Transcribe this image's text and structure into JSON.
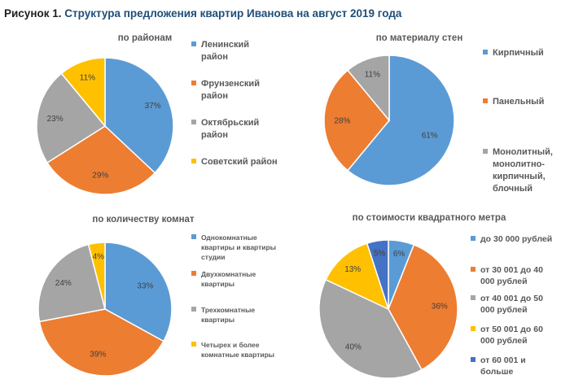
{
  "figure": {
    "title_lead": "Рисунок 1.",
    "title_rest": "Структура предложения квартир Иванова на август 2019 года"
  },
  "chart_data": [
    {
      "type": "pie",
      "title": "по районам",
      "categories": [
        "Ленинский район",
        "Фрунзенский район",
        "Октябрьский район",
        "Советский район"
      ],
      "values": [
        37,
        29,
        23,
        11
      ],
      "labels": [
        "37%",
        "29%",
        "23%",
        "11%"
      ],
      "colors": [
        "#5b9bd5",
        "#ed7d31",
        "#a5a5a5",
        "#ffc000"
      ],
      "legend_position": "right"
    },
    {
      "type": "pie",
      "title": "по материалу стен",
      "categories": [
        "Кирпичный",
        "Панельный",
        "Монолитный, монолитно-кирпичный, блочный"
      ],
      "values": [
        61,
        28,
        11
      ],
      "labels": [
        "61%",
        "28%",
        "11%"
      ],
      "colors": [
        "#5b9bd5",
        "#ed7d31",
        "#a5a5a5"
      ],
      "legend_position": "right"
    },
    {
      "type": "pie",
      "title": "по количеству комнат",
      "categories": [
        "Однокомнатные квартиры и квартиры студии",
        "Двухкомнатные квартиры",
        "Трехкомнатные квартиры",
        "Четырех и более комнатные квартиры"
      ],
      "values": [
        33,
        39,
        24,
        4
      ],
      "labels": [
        "33%",
        "39%",
        "24%",
        "4%"
      ],
      "colors": [
        "#5b9bd5",
        "#ed7d31",
        "#a5a5a5",
        "#ffc000"
      ],
      "legend_position": "right"
    },
    {
      "type": "pie",
      "title": "по стоимости квадратного метра",
      "categories": [
        "до 30 000 рублей",
        "от 30 001 до 40 000 рублей",
        "от 40 001 до 50 000 рублей",
        "от 50 001 до 60 000 рублей",
        "от 60 001 и больше"
      ],
      "values": [
        6,
        36,
        40,
        13,
        5
      ],
      "labels": [
        "6%",
        "36%",
        "40%",
        "13%",
        "5%"
      ],
      "colors": [
        "#5b9bd5",
        "#ed7d31",
        "#a5a5a5",
        "#ffc000",
        "#4472c4"
      ],
      "legend_position": "right"
    }
  ]
}
